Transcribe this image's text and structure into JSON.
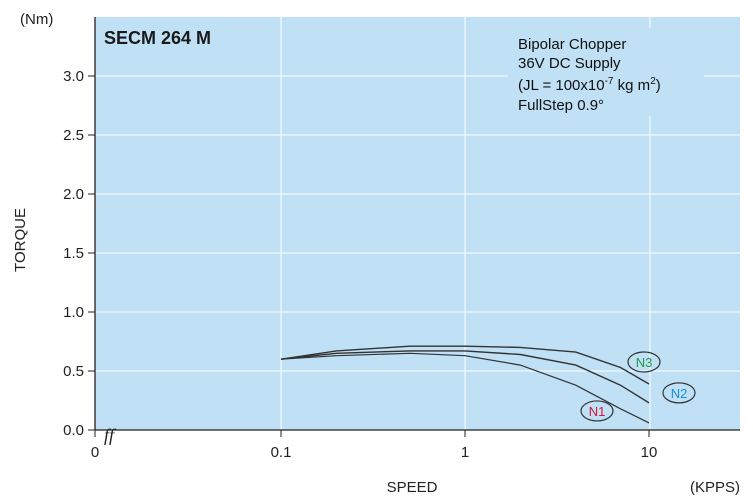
{
  "chart_data": {
    "type": "line",
    "title": "SECM 264 M",
    "xlabel": "SPEED",
    "xunit": "(KPPS)",
    "ylabel": "TORQUE",
    "yunit": "(Nm)",
    "x_scale": "log",
    "x_ticks": [
      "0",
      "0.1",
      "1",
      "10"
    ],
    "y_ticks": [
      "0.0",
      "0.5",
      "1.0",
      "1.5",
      "2.0",
      "2.5",
      "3.0"
    ],
    "ylim": [
      0,
      3.5
    ],
    "grid": true,
    "axis_break_mark": "ff",
    "background_color": "#bfe0f5",
    "grid_color": "#ffffff",
    "curve_color": "#333333",
    "annotation": {
      "line1": "Bipolar Chopper",
      "line2": "36V DC Supply",
      "line3_pre": "(JL = 100x10",
      "line3_sup1": "-7",
      "line3_mid": " kg m",
      "line3_sup2": "2",
      "line3_post": ")",
      "line4": "FullStep 0.9°"
    },
    "series": [
      {
        "name": "N1",
        "label_color": "#d8143a",
        "x": [
          0.1,
          0.2,
          0.5,
          1,
          2,
          4,
          7,
          10
        ],
        "y": [
          0.6,
          0.63,
          0.65,
          0.63,
          0.55,
          0.38,
          0.18,
          0.06
        ]
      },
      {
        "name": "N2",
        "label_color": "#1a8fd8",
        "x": [
          0.1,
          0.2,
          0.5,
          1,
          2,
          4,
          7,
          10
        ],
        "y": [
          0.6,
          0.65,
          0.67,
          0.67,
          0.64,
          0.55,
          0.38,
          0.23
        ]
      },
      {
        "name": "N3",
        "label_color": "#1f9a4a",
        "x": [
          0.1,
          0.2,
          0.5,
          1,
          2,
          4,
          7,
          10
        ],
        "y": [
          0.6,
          0.67,
          0.71,
          0.71,
          0.7,
          0.66,
          0.53,
          0.39
        ]
      }
    ]
  }
}
